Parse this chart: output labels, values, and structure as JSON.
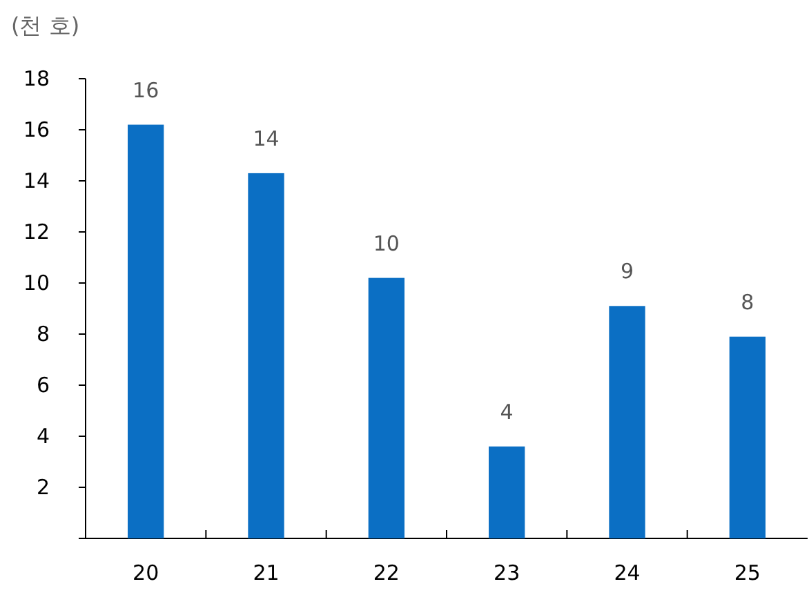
{
  "chart_data": {
    "type": "bar",
    "ylabel": "(천 호)",
    "categories": [
      "20",
      "21",
      "22",
      "23",
      "24",
      "25"
    ],
    "values": [
      16.2,
      14.3,
      10.2,
      3.6,
      9.1,
      7.9
    ],
    "value_labels": [
      "16",
      "14",
      "10",
      "4",
      "9",
      "8"
    ],
    "color": "#0b6fc4",
    "ylim": [
      0,
      18
    ],
    "yticks": [
      {
        "value": 0,
        "label": null
      },
      2,
      4,
      6,
      8,
      10,
      12,
      14,
      16,
      18
    ],
    "grid": false
  }
}
